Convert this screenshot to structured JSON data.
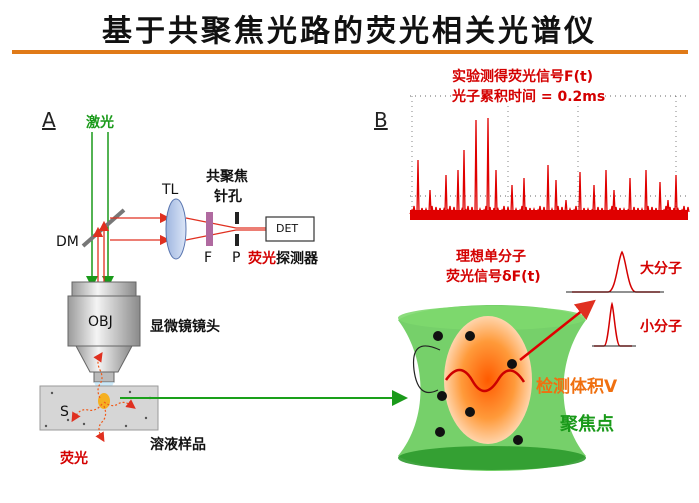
{
  "title": "基于共聚焦光路的荧光相关光谱仪",
  "panel_a": {
    "label": "A",
    "laser": "激光",
    "tl": "TL",
    "dm": "DM",
    "pinhole": [
      "共聚焦",
      "针孔"
    ],
    "f": "F",
    "p": "P",
    "det": "DET",
    "detector_prefix": "荧光",
    "detector_suffix": "探测器",
    "obj": "OBJ",
    "objective": "显微镜镜头",
    "s": "S",
    "sample": "溶液样品",
    "fluorescence": "荧光"
  },
  "panel_b": {
    "label": "B",
    "signal_title": [
      "实验测得荧光信号F(t)",
      "光子累积时间 = 0.2ms"
    ],
    "ideal": [
      "理想单分子",
      "荧光信号δF(t)"
    ],
    "big": "大分子",
    "small": "小分子",
    "volume": "检测体积V",
    "focus": "聚焦点"
  },
  "colors": {
    "accent": "#e07a18",
    "laser": "#1a9a1a",
    "signal": "#e00000"
  }
}
